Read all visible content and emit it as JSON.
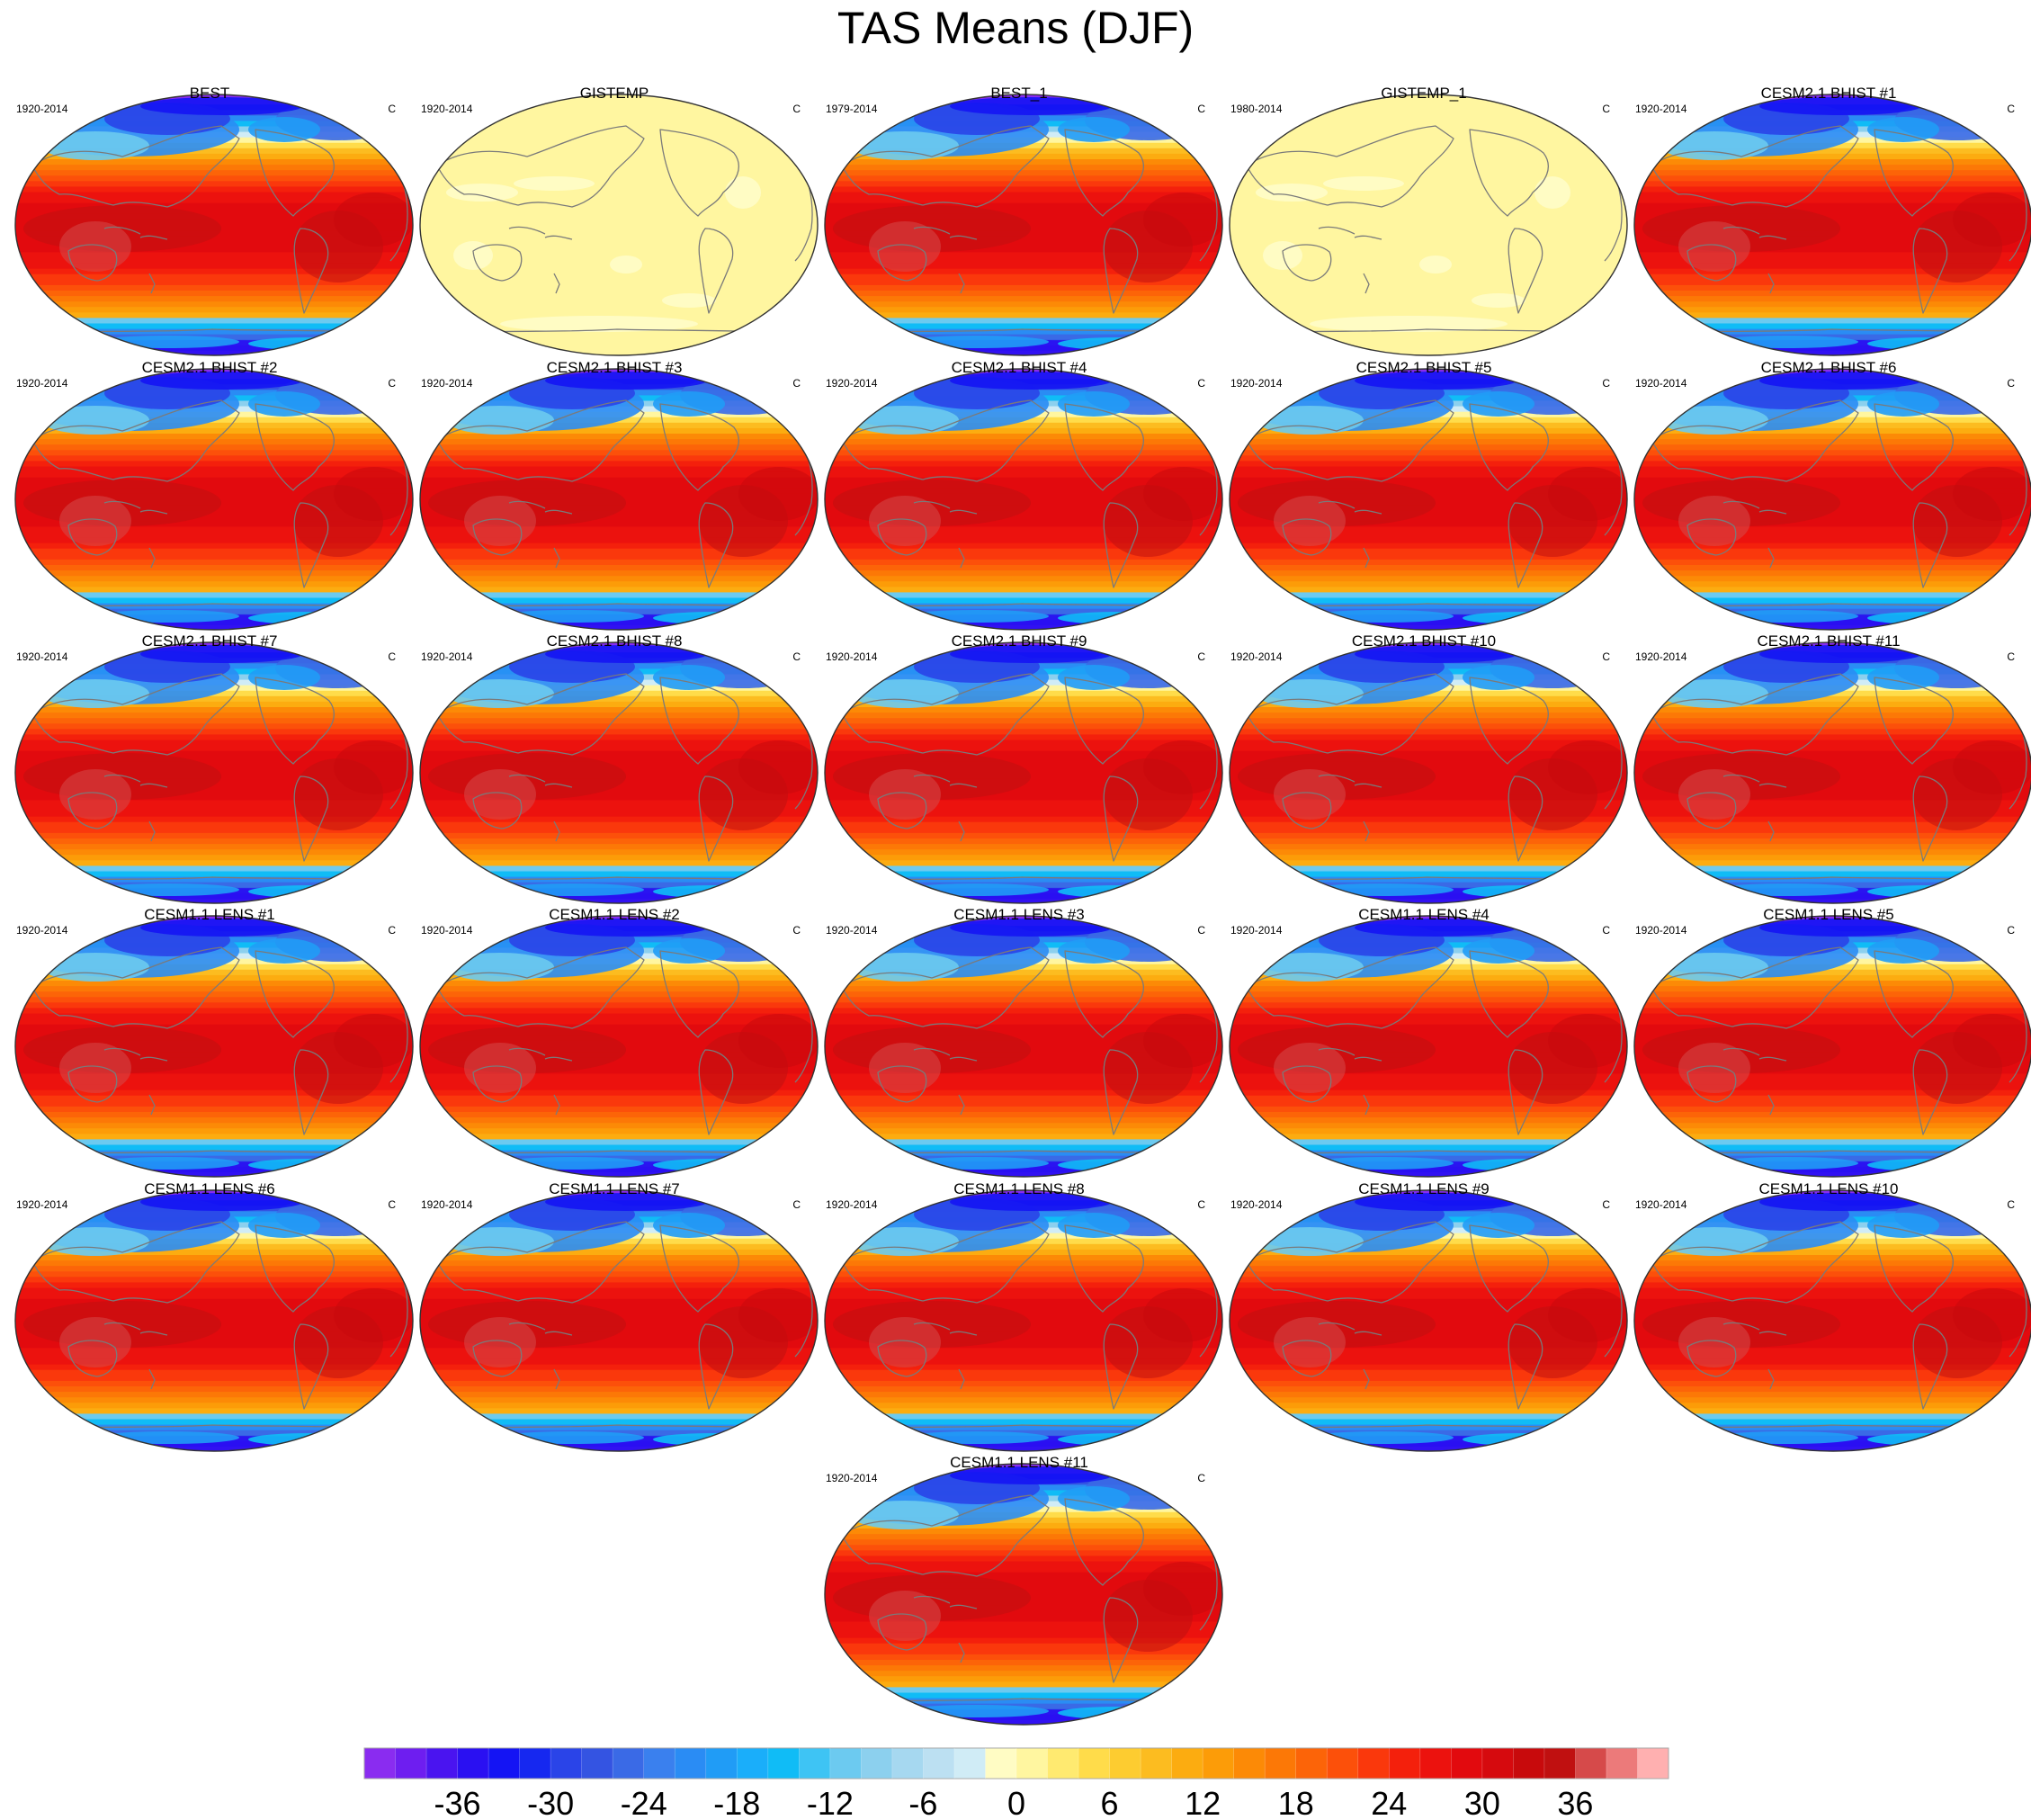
{
  "title": "TAS Means (DJF)",
  "colors": {
    "land_line": "#7a7a7a",
    "outline": "#333333"
  },
  "chart_data": {
    "type": "map_panels",
    "variable": "TAS",
    "season": "DJF",
    "units": "C",
    "panels": [
      {
        "name": "BEST",
        "period": "1920-2014",
        "units": "C",
        "style": "model"
      },
      {
        "name": "GISTEMP",
        "period": "1920-2014",
        "units": "C",
        "style": "anomaly"
      },
      {
        "name": "BEST_1",
        "period": "1979-2014",
        "units": "C",
        "style": "model"
      },
      {
        "name": "GISTEMP_1",
        "period": "1980-2014",
        "units": "C",
        "style": "anomaly"
      },
      {
        "name": "CESM2.1 BHIST #1",
        "period": "1920-2014",
        "units": "C",
        "style": "model"
      },
      {
        "name": "CESM2.1 BHIST #2",
        "period": "1920-2014",
        "units": "C",
        "style": "model"
      },
      {
        "name": "CESM2.1 BHIST #3",
        "period": "1920-2014",
        "units": "C",
        "style": "model"
      },
      {
        "name": "CESM2.1 BHIST #4",
        "period": "1920-2014",
        "units": "C",
        "style": "model"
      },
      {
        "name": "CESM2.1 BHIST #5",
        "period": "1920-2014",
        "units": "C",
        "style": "model"
      },
      {
        "name": "CESM2.1 BHIST #6",
        "period": "1920-2014",
        "units": "C",
        "style": "model"
      },
      {
        "name": "CESM2.1 BHIST #7",
        "period": "1920-2014",
        "units": "C",
        "style": "model"
      },
      {
        "name": "CESM2.1 BHIST #8",
        "period": "1920-2014",
        "units": "C",
        "style": "model"
      },
      {
        "name": "CESM2.1 BHIST #9",
        "period": "1920-2014",
        "units": "C",
        "style": "model"
      },
      {
        "name": "CESM2.1 BHIST #10",
        "period": "1920-2014",
        "units": "C",
        "style": "model"
      },
      {
        "name": "CESM2.1 BHIST #11",
        "period": "1920-2014",
        "units": "C",
        "style": "model"
      },
      {
        "name": "CESM1.1 LENS #1",
        "period": "1920-2014",
        "units": "C",
        "style": "model"
      },
      {
        "name": "CESM1.1 LENS #2",
        "period": "1920-2014",
        "units": "C",
        "style": "model"
      },
      {
        "name": "CESM1.1 LENS #3",
        "period": "1920-2014",
        "units": "C",
        "style": "model"
      },
      {
        "name": "CESM1.1 LENS #4",
        "period": "1920-2014",
        "units": "C",
        "style": "model"
      },
      {
        "name": "CESM1.1 LENS #5",
        "period": "1920-2014",
        "units": "C",
        "style": "model"
      },
      {
        "name": "CESM1.1 LENS #6",
        "period": "1920-2014",
        "units": "C",
        "style": "model"
      },
      {
        "name": "CESM1.1 LENS #7",
        "period": "1920-2014",
        "units": "C",
        "style": "model"
      },
      {
        "name": "CESM1.1 LENS #8",
        "period": "1920-2014",
        "units": "C",
        "style": "model"
      },
      {
        "name": "CESM1.1 LENS #9",
        "period": "1920-2014",
        "units": "C",
        "style": "model"
      },
      {
        "name": "CESM1.1 LENS #10",
        "period": "1920-2014",
        "units": "C",
        "style": "model"
      },
      {
        "name": "CESM1.1 LENS #11",
        "period": "1920-2014",
        "units": "C",
        "style": "model"
      }
    ],
    "colorbar": {
      "min": -42,
      "max": 42,
      "step": 2,
      "ticks": [
        -36,
        -30,
        -24,
        -18,
        -12,
        -6,
        0,
        6,
        12,
        18,
        24,
        30,
        36
      ],
      "tick_labels": [
        "-36",
        "-30",
        "-24",
        "-18",
        "-12",
        "-6",
        "0",
        "6",
        "12",
        "18",
        "24",
        "30",
        "36"
      ],
      "colors": [
        "#8a2cf0",
        "#6e1ef0",
        "#4a14f0",
        "#2a10f2",
        "#1414f4",
        "#1628f0",
        "#2a44e8",
        "#3454e2",
        "#3a6ae6",
        "#3a80ee",
        "#2a8cf4",
        "#209cf6",
        "#1aaefa",
        "#10bcf6",
        "#3ec4f4",
        "#6ccaf0",
        "#8cd0ee",
        "#a6d8f0",
        "#bce0f2",
        "#d0ecf6",
        "#fffcc4",
        "#fff6a0",
        "#ffea70",
        "#ffdc4a",
        "#fdcc30",
        "#fcbc20",
        "#fcac10",
        "#fc9c08",
        "#fc8a06",
        "#fc7806",
        "#fc6408",
        "#fc500a",
        "#fa380c",
        "#f4200c",
        "#ec120e",
        "#e20a0e",
        "#d60a0e",
        "#c80a0c",
        "#c01010",
        "#d64a4a",
        "#ec7a7a",
        "#ffb0b0"
      ]
    }
  }
}
